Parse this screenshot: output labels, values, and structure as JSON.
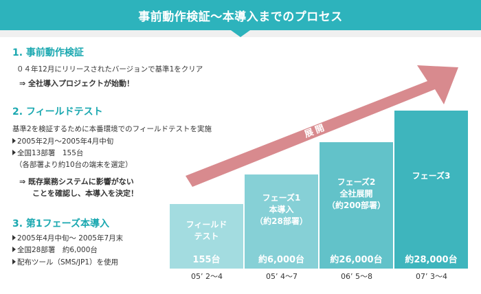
{
  "header": {
    "title": "事前動作検証〜本導入までのプロセス"
  },
  "step1": {
    "title": "1. 事前動作検証",
    "desc": "０４年12月にリリースされたバージョンで基準1をクリア",
    "result": "⇒ 全社導入プロジェクトが始動！"
  },
  "step2": {
    "title": "2. フィールドテスト",
    "desc": "基準2を検証するために本番環境でのフィールドテストを実施",
    "bullets": [
      "2005年2月〜2005年4月中旬",
      "全国13部署　155台"
    ],
    "note": "（各部署より約10台の端末を選定）",
    "result_line1": "⇒ 既存業務システムに影響がない",
    "result_line2": "ことを確認し、本導入を決定！"
  },
  "step3": {
    "title": "3. 第1フェーズ本導入",
    "bullets": [
      "2005年4月中旬〜 2005年7月末",
      "全国28部署　約6,000台",
      "配布ツール（SMS/JP1）を使用"
    ]
  },
  "arrow": {
    "label": "展 開"
  },
  "chart_data": {
    "type": "bar",
    "categories": [
      "フィールドテスト",
      "フェーズ1 本導入（約28部署）",
      "フェーズ2 全社展開（約200部署）",
      "フェーズ3"
    ],
    "values": [
      155,
      6000,
      26000,
      28000
    ],
    "bars": [
      {
        "label": [
          "フィールド",
          "テスト"
        ],
        "count": "155台",
        "period": "05’ 2〜4",
        "color": "#a3dce0"
      },
      {
        "label": [
          "フェーズ1",
          "本導入",
          "（約28部署）"
        ],
        "count": "約6,000台",
        "period": "05’ 4〜7",
        "color": "#86d0d6"
      },
      {
        "label": [
          "フェーズ2",
          "全社展開",
          "（約200部署）"
        ],
        "count": "約26,000台",
        "period": "06’ 5〜8",
        "color": "#62c2c9"
      },
      {
        "label": [
          "フェーズ3"
        ],
        "count": "約28,000台",
        "period": "07’ 3〜4",
        "color": "#3eb5bd"
      }
    ]
  }
}
